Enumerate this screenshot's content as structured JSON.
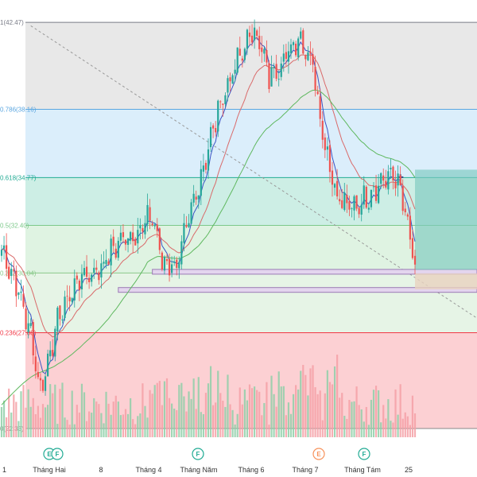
{
  "chart_data": {
    "type": "candlestick",
    "y_range": [
      21.5,
      43.5
    ],
    "fib_levels": [
      {
        "label": "1(42.47)",
        "price": 42.47,
        "color": "#787b86",
        "fill": "#e8e8e8"
      },
      {
        "label": "0.786(38.16)",
        "price": 38.16,
        "color": "#5aa6e0",
        "fill": "#dbeefb"
      },
      {
        "label": "0.618(34.77)",
        "price": 34.77,
        "color": "#22ab94",
        "fill": "#cdeee5"
      },
      {
        "label": "0.5(32.40)",
        "price": 32.4,
        "color": "#7cc88a",
        "fill": "#dff3e2"
      },
      {
        "label": "0.382(30.04)",
        "price": 30.04,
        "color": "#8ac98a",
        "fill": "#e6f4e6"
      },
      {
        "label": "0.236(27.08)",
        "price": 27.08,
        "color": "#f23645",
        "fill": "#fcd0d3"
      },
      {
        "label": "0(22.33)",
        "price": 22.33,
        "color": "#888888",
        "fill": "#ffffff"
      }
    ],
    "x_axis_labels": [
      "1",
      "Tháng Hai",
      "8",
      "Tháng 4",
      "Tháng Năm",
      "Tháng 6",
      "Tháng 7",
      "Tháng Tám",
      "25"
    ],
    "event_markers": [
      {
        "letter": "E",
        "color": "#22ab94"
      },
      {
        "letter": "F",
        "color": "#22ab94"
      },
      {
        "letter": "F",
        "color": "#22ab94"
      },
      {
        "letter": "E",
        "color": "#f7925b"
      },
      {
        "letter": "F",
        "color": "#22ab94"
      }
    ],
    "key_points": [
      {
        "t": 0,
        "p": 31.2
      },
      {
        "t": 6,
        "p": 29.5
      },
      {
        "t": 12,
        "p": 27.0
      },
      {
        "t": 16,
        "p": 24.2
      },
      {
        "t": 20,
        "p": 26.2
      },
      {
        "t": 24,
        "p": 28.0
      },
      {
        "t": 32,
        "p": 29.8
      },
      {
        "t": 40,
        "p": 30.2
      },
      {
        "t": 48,
        "p": 31.6
      },
      {
        "t": 55,
        "p": 32.0
      },
      {
        "t": 62,
        "p": 32.9
      },
      {
        "t": 66,
        "p": 30.6
      },
      {
        "t": 72,
        "p": 30.4
      },
      {
        "t": 80,
        "p": 34.0
      },
      {
        "t": 90,
        "p": 38.5
      },
      {
        "t": 98,
        "p": 40.8
      },
      {
        "t": 104,
        "p": 42.2
      },
      {
        "t": 110,
        "p": 39.8
      },
      {
        "t": 116,
        "p": 40.6
      },
      {
        "t": 122,
        "p": 41.8
      },
      {
        "t": 128,
        "p": 40.5
      },
      {
        "t": 132,
        "p": 37.0
      },
      {
        "t": 138,
        "p": 33.8
      },
      {
        "t": 144,
        "p": 33.2
      },
      {
        "t": 150,
        "p": 33.8
      },
      {
        "t": 156,
        "p": 34.6
      },
      {
        "t": 162,
        "p": 34.9
      },
      {
        "t": 166,
        "p": 33.0
      },
      {
        "t": 170,
        "p": 30.2
      }
    ],
    "annotations": {
      "position_entry": 34.77,
      "position_target_low": 30.04,
      "support_zone_upper": 30.1,
      "support_zone_lower": 29.2,
      "trendline_start": 42.3,
      "trendline_end": 27.8
    }
  }
}
